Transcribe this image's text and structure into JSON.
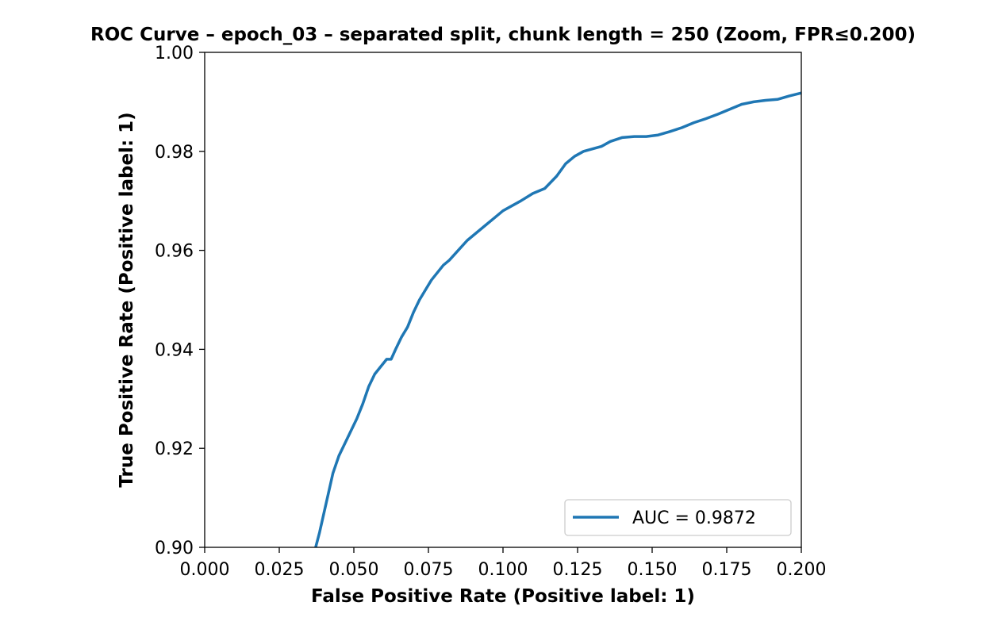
{
  "chart_data": {
    "type": "line",
    "title": "ROC Curve – epoch_03 – separated split, chunk length = 250 (Zoom, FPR≤0.200)",
    "xlabel": "False Positive Rate (Positive label: 1)",
    "ylabel": "True Positive Rate (Positive label: 1)",
    "xlim": [
      0.0,
      0.2
    ],
    "ylim": [
      0.9,
      1.0
    ],
    "x_ticks": [
      "0.000",
      "0.025",
      "0.050",
      "0.075",
      "0.100",
      "0.125",
      "0.150",
      "0.175",
      "0.200"
    ],
    "y_ticks": [
      "0.90",
      "0.92",
      "0.94",
      "0.96",
      "0.98",
      "1.00"
    ],
    "grid": false,
    "legend_position": "lower-right",
    "series": [
      {
        "name": "AUC = 0.9872",
        "color": "#1f77b4",
        "x": [
          0.0372,
          0.0385,
          0.04,
          0.0415,
          0.043,
          0.045,
          0.047,
          0.049,
          0.051,
          0.053,
          0.055,
          0.057,
          0.059,
          0.061,
          0.0625,
          0.064,
          0.066,
          0.068,
          0.07,
          0.072,
          0.074,
          0.076,
          0.078,
          0.08,
          0.082,
          0.085,
          0.088,
          0.091,
          0.094,
          0.097,
          0.1,
          0.103,
          0.106,
          0.11,
          0.114,
          0.118,
          0.121,
          0.124,
          0.127,
          0.13,
          0.133,
          0.136,
          0.14,
          0.144,
          0.148,
          0.152,
          0.156,
          0.16,
          0.164,
          0.168,
          0.172,
          0.176,
          0.18,
          0.184,
          0.188,
          0.192,
          0.196,
          0.2
        ],
        "y": [
          0.9,
          0.903,
          0.907,
          0.911,
          0.915,
          0.9185,
          0.921,
          0.9235,
          0.926,
          0.929,
          0.9325,
          0.935,
          0.9365,
          0.938,
          0.938,
          0.94,
          0.9425,
          0.9445,
          0.9475,
          0.95,
          0.952,
          0.954,
          0.9555,
          0.957,
          0.958,
          0.96,
          0.962,
          0.9635,
          0.965,
          0.9665,
          0.968,
          0.969,
          0.97,
          0.9715,
          0.9725,
          0.975,
          0.9775,
          0.979,
          0.98,
          0.9805,
          0.981,
          0.982,
          0.9828,
          0.983,
          0.983,
          0.9833,
          0.984,
          0.9848,
          0.9858,
          0.9866,
          0.9875,
          0.9885,
          0.9895,
          0.99,
          0.9903,
          0.9905,
          0.9912,
          0.9918
        ]
      }
    ]
  }
}
